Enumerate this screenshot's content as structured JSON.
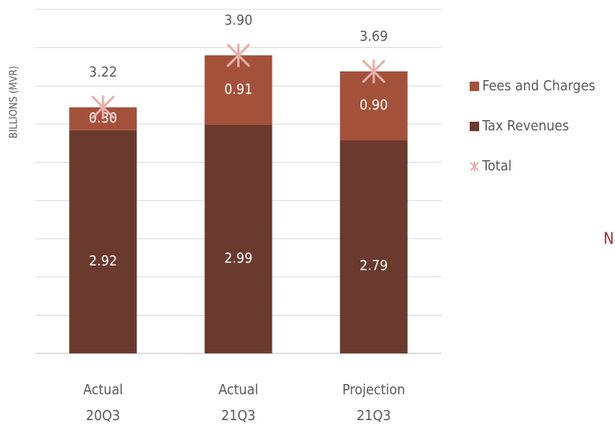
{
  "chart_data": {
    "type": "bar",
    "stacked": true,
    "y_axis_label": "BILLIONS (MVR)",
    "categories": [
      [
        "Actual",
        "20Q3"
      ],
      [
        "Actual",
        "21Q3"
      ],
      [
        "Projection",
        "21Q3"
      ]
    ],
    "series": [
      {
        "name": "Tax Revenues",
        "color": "#6b3a2e",
        "values": [
          2.92,
          2.99,
          2.79
        ],
        "value_labels": [
          "2.92",
          "2.99",
          "2.79"
        ]
      },
      {
        "name": "Fees and Charges",
        "color": "#a4513b",
        "values": [
          0.3,
          0.91,
          0.9
        ],
        "value_labels": [
          "0.30",
          "0.91",
          "0.90"
        ]
      },
      {
        "name": "Total",
        "type": "scatter",
        "color": "#e8b0ab",
        "values": [
          3.22,
          3.9,
          3.69
        ],
        "value_labels": [
          "3.22",
          "3.90",
          "3.69"
        ]
      }
    ],
    "ylim": [
      0,
      4.5
    ],
    "yticks": [
      0,
      0.5,
      1,
      1.5,
      2,
      2.5,
      3,
      3.5,
      4,
      4.5
    ],
    "grid": true,
    "legend": "right",
    "annotation": "N"
  }
}
